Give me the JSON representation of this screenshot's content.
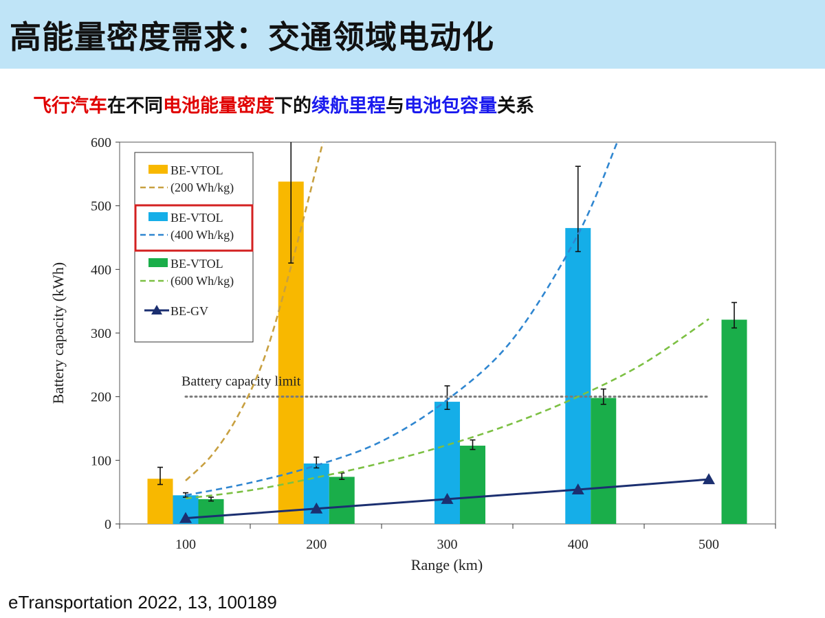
{
  "slide": {
    "title": "高能量密度需求：交通领域电动化",
    "subtitle_parts": [
      {
        "text": "飞行汽车",
        "color": "#e00000"
      },
      {
        "text": "在不同",
        "color": "#111111"
      },
      {
        "text": "电池能量密度",
        "color": "#e00000"
      },
      {
        "text": "下的",
        "color": "#111111"
      },
      {
        "text": "续航里程",
        "color": "#1a1aee"
      },
      {
        "text": "与",
        "color": "#111111"
      },
      {
        "text": "电池包容量",
        "color": "#1a1aee"
      },
      {
        "text": "关系",
        "color": "#111111"
      }
    ],
    "citation": "eTransportation 2022, 13, 100189",
    "header_color": "#bfe4f7"
  },
  "chart_data": {
    "type": "bar",
    "xlabel": "Range (km)",
    "ylabel": "Battery capacity (kWh)",
    "ylim": [
      0,
      600
    ],
    "yticks": [
      0,
      100,
      200,
      300,
      400,
      500,
      600
    ],
    "categories": [
      "100",
      "200",
      "300",
      "400",
      "500"
    ],
    "x_values": [
      100,
      200,
      300,
      400,
      500
    ],
    "bar_series": [
      {
        "key": "vtol200",
        "color": "#f8b800",
        "offset": -1,
        "values": [
          71,
          538,
          null,
          null,
          null
        ],
        "error_low": [
          62,
          410,
          null,
          null,
          null
        ],
        "error_high": [
          89,
          600,
          null,
          null,
          null
        ]
      },
      {
        "key": "vtol400",
        "color": "#15aee8",
        "offset": 0,
        "values": [
          45,
          95,
          192,
          465,
          null
        ],
        "error_low": [
          42,
          88,
          180,
          428,
          null
        ],
        "error_high": [
          49,
          105,
          217,
          562,
          null
        ]
      },
      {
        "key": "vtol600",
        "color": "#1aae4a",
        "offset": 1,
        "values": [
          39,
          74,
          123,
          198,
          321
        ],
        "error_low": [
          36,
          70,
          117,
          188,
          308
        ],
        "error_high": [
          42,
          80,
          132,
          212,
          348
        ]
      }
    ],
    "curves": [
      {
        "key": "vtol200",
        "color": "#c8a040",
        "points": [
          [
            100,
            68
          ],
          [
            120,
            108
          ],
          [
            140,
            170
          ],
          [
            160,
            260
          ],
          [
            180,
            400
          ],
          [
            200,
            560
          ],
          [
            205,
            600
          ]
        ]
      },
      {
        "key": "vtol400",
        "color": "#2f86d0",
        "points": [
          [
            100,
            45
          ],
          [
            150,
            65
          ],
          [
            200,
            92
          ],
          [
            250,
            130
          ],
          [
            300,
            195
          ],
          [
            350,
            290
          ],
          [
            400,
            455
          ],
          [
            430,
            600
          ]
        ]
      },
      {
        "key": "vtol600",
        "color": "#7cc043",
        "points": [
          [
            100,
            40
          ],
          [
            150,
            53
          ],
          [
            200,
            73
          ],
          [
            250,
            96
          ],
          [
            300,
            124
          ],
          [
            350,
            158
          ],
          [
            400,
            200
          ],
          [
            450,
            252
          ],
          [
            500,
            322
          ]
        ]
      }
    ],
    "line_series": {
      "key": "begv",
      "color": "#1b2f70",
      "x": [
        100,
        200,
        300,
        400,
        500
      ],
      "values": [
        9,
        24,
        39,
        54,
        70
      ]
    },
    "capacity_limit": {
      "label": "Battery capacity limit",
      "value": 200,
      "x_from": 100,
      "x_to": 500,
      "color": "#7a7a7a"
    },
    "legend": {
      "placement": "top-left",
      "entries": [
        {
          "line1": "BE-VTOL",
          "line2": "(200 Wh/kg)",
          "bar_color": "#f8b800",
          "dash_color": "#c8a040",
          "highlight": false
        },
        {
          "line1": "BE-VTOL",
          "line2": "(400 Wh/kg)",
          "bar_color": "#15aee8",
          "dash_color": "#2f86d0",
          "highlight": true
        },
        {
          "line1": "BE-VTOL",
          "line2": "(600 Wh/kg)",
          "bar_color": "#1aae4a",
          "dash_color": "#7cc043",
          "highlight": false
        },
        {
          "line1": "BE-GV",
          "line2": "",
          "bar_color": null,
          "dash_color": "#1b2f70",
          "highlight": false,
          "marker": "triangle"
        }
      ],
      "highlight_color": "#d32020"
    }
  }
}
